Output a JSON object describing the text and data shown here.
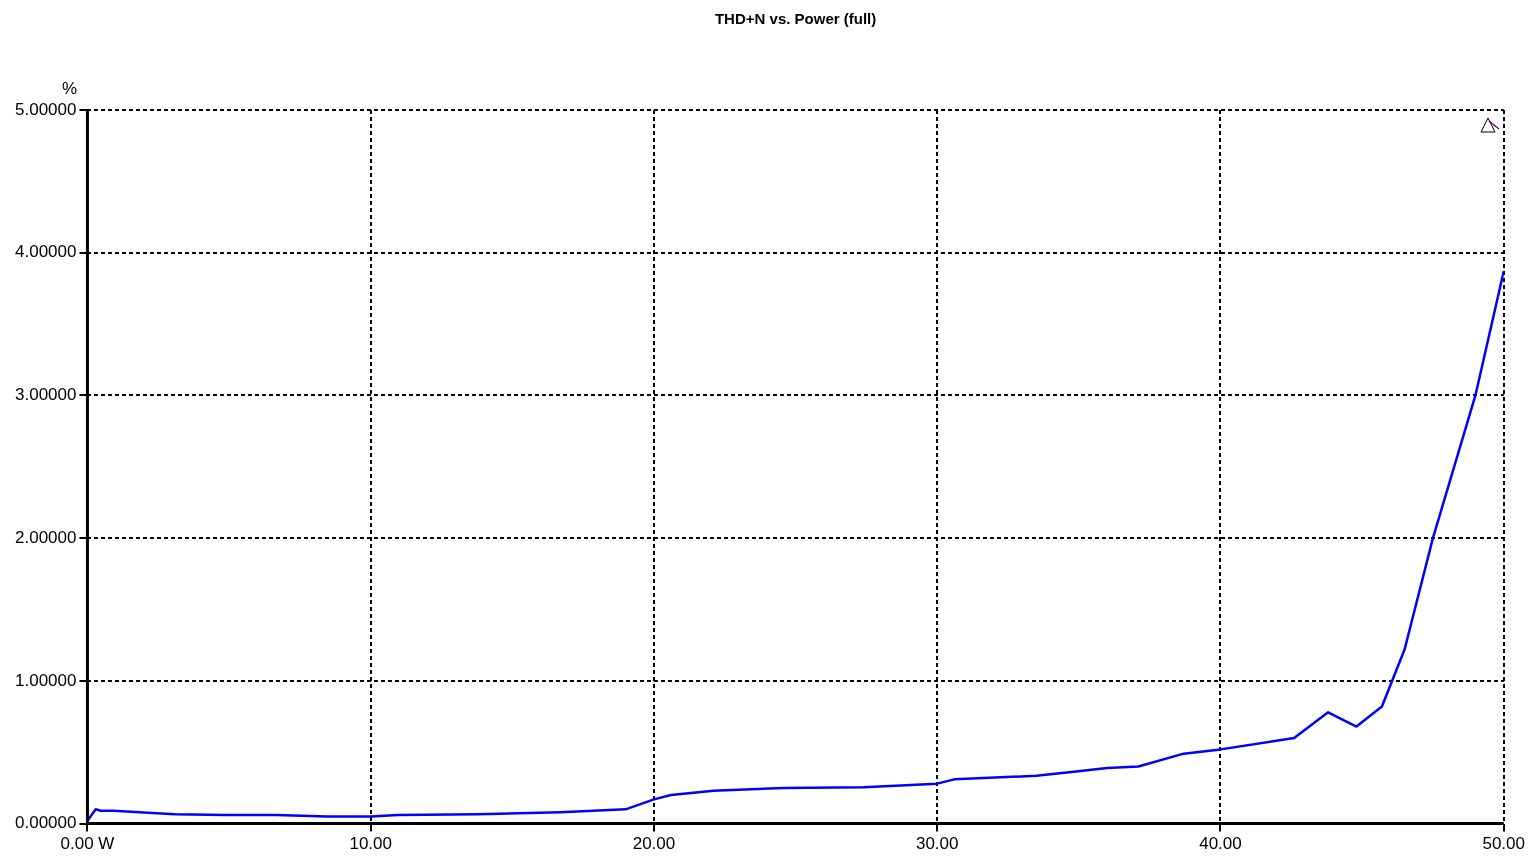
{
  "chart_data": {
    "type": "line",
    "title": "THD+N vs. Power (full)",
    "ylabel": "%",
    "x": [
      0,
      0.29,
      0.47,
      0.93,
      1.83,
      3.08,
      4.87,
      6.66,
      8.45,
      10,
      10.96,
      13.8,
      16.7,
      19,
      20,
      20.6,
      22.1,
      24.6,
      27.4,
      30,
      30.6,
      33.5,
      34.9,
      36,
      37.1,
      38.7,
      40,
      42.6,
      43.8,
      44.8,
      45.7,
      46.5,
      47.5,
      49,
      50
    ],
    "series": [
      {
        "color": "#0000ff",
        "values": [
          0.02,
          0.1,
          0.09,
          0.09,
          0.08,
          0.065,
          0.06,
          0.06,
          0.05,
          0.05,
          0.06,
          0.065,
          0.08,
          0.1,
          0.17,
          0.2,
          0.23,
          0.25,
          0.255,
          0.28,
          0.31,
          0.335,
          0.365,
          0.39,
          0.4,
          0.49,
          0.52,
          0.6,
          0.78,
          0.68,
          0.82,
          1.22,
          2.0,
          3.0,
          3.87
        ]
      }
    ],
    "xlim": [
      0,
      50
    ],
    "ylim": [
      0,
      5
    ],
    "xticks": [
      {
        "value": 0,
        "label": "0.00 W"
      },
      {
        "value": 10,
        "label": "10.00"
      },
      {
        "value": 20,
        "label": "20.00"
      },
      {
        "value": 30,
        "label": "30.00"
      },
      {
        "value": 40,
        "label": "40.00"
      },
      {
        "value": 50,
        "label": "50.00"
      }
    ],
    "yticks": [
      {
        "value": 0,
        "label": "0.00000"
      },
      {
        "value": 1,
        "label": "1.00000"
      },
      {
        "value": 2,
        "label": "2.00000"
      },
      {
        "value": 3,
        "label": "3.00000"
      },
      {
        "value": 4,
        "label": "4.00000"
      },
      {
        "value": 5,
        "label": "5.00000"
      }
    ],
    "grid": true,
    "legend": false,
    "marker": "none",
    "line_style": "solid"
  }
}
